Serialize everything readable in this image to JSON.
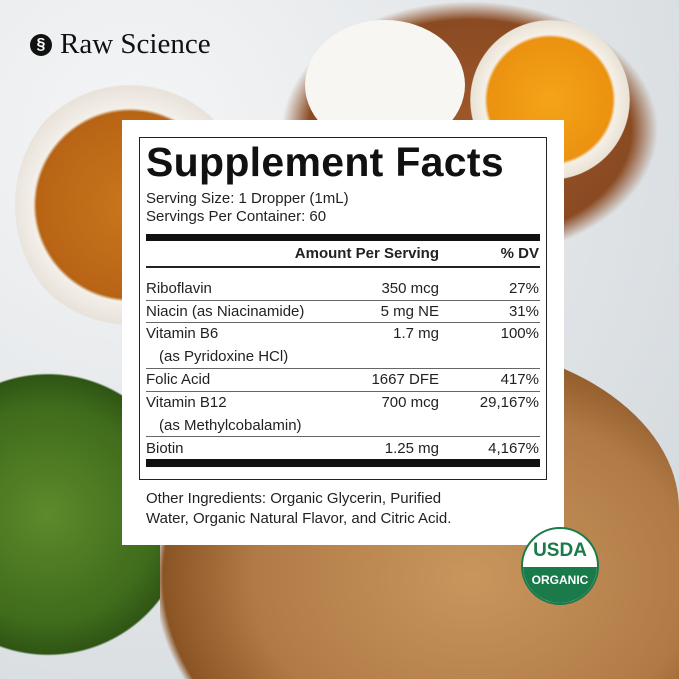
{
  "brand": {
    "name": "Raw Science",
    "logo_icon": "raw-science-logo"
  },
  "facts": {
    "title": "Supplement Facts",
    "serving_size": "Serving Size: 1 Dropper (1mL)",
    "servings_per_container": "Servings Per Container: 60",
    "header_amount": "Amount Per Serving",
    "header_dv": "% DV",
    "rows": [
      {
        "name": "Riboflavin",
        "amount": "350 mcg",
        "dv": "27%"
      },
      {
        "name": "Niacin (as Niacinamide)",
        "amount": "5 mg NE",
        "dv": "31%"
      },
      {
        "name": "Vitamin B6",
        "sub": "(as Pyridoxine HCl)",
        "amount": "1.7 mg",
        "dv": "100%"
      },
      {
        "name": "Folic Acid",
        "amount": "1667 DFE",
        "dv": "417%"
      },
      {
        "name": "Vitamin B12",
        "sub": "(as Methylcobalamin)",
        "amount": "700 mcg",
        "dv": "29,167%"
      },
      {
        "name": "Biotin",
        "amount": "1.25 mg",
        "dv": "4,167%"
      }
    ],
    "other_ingredients_1": "Other Ingredients: Organic Glycerin, Purified",
    "other_ingredients_2": "Water, Organic Natural Flavor, and Citric Acid."
  },
  "seal": {
    "line1": "USDA",
    "line2": "ORGANIC",
    "color": "#1a7a4a"
  }
}
